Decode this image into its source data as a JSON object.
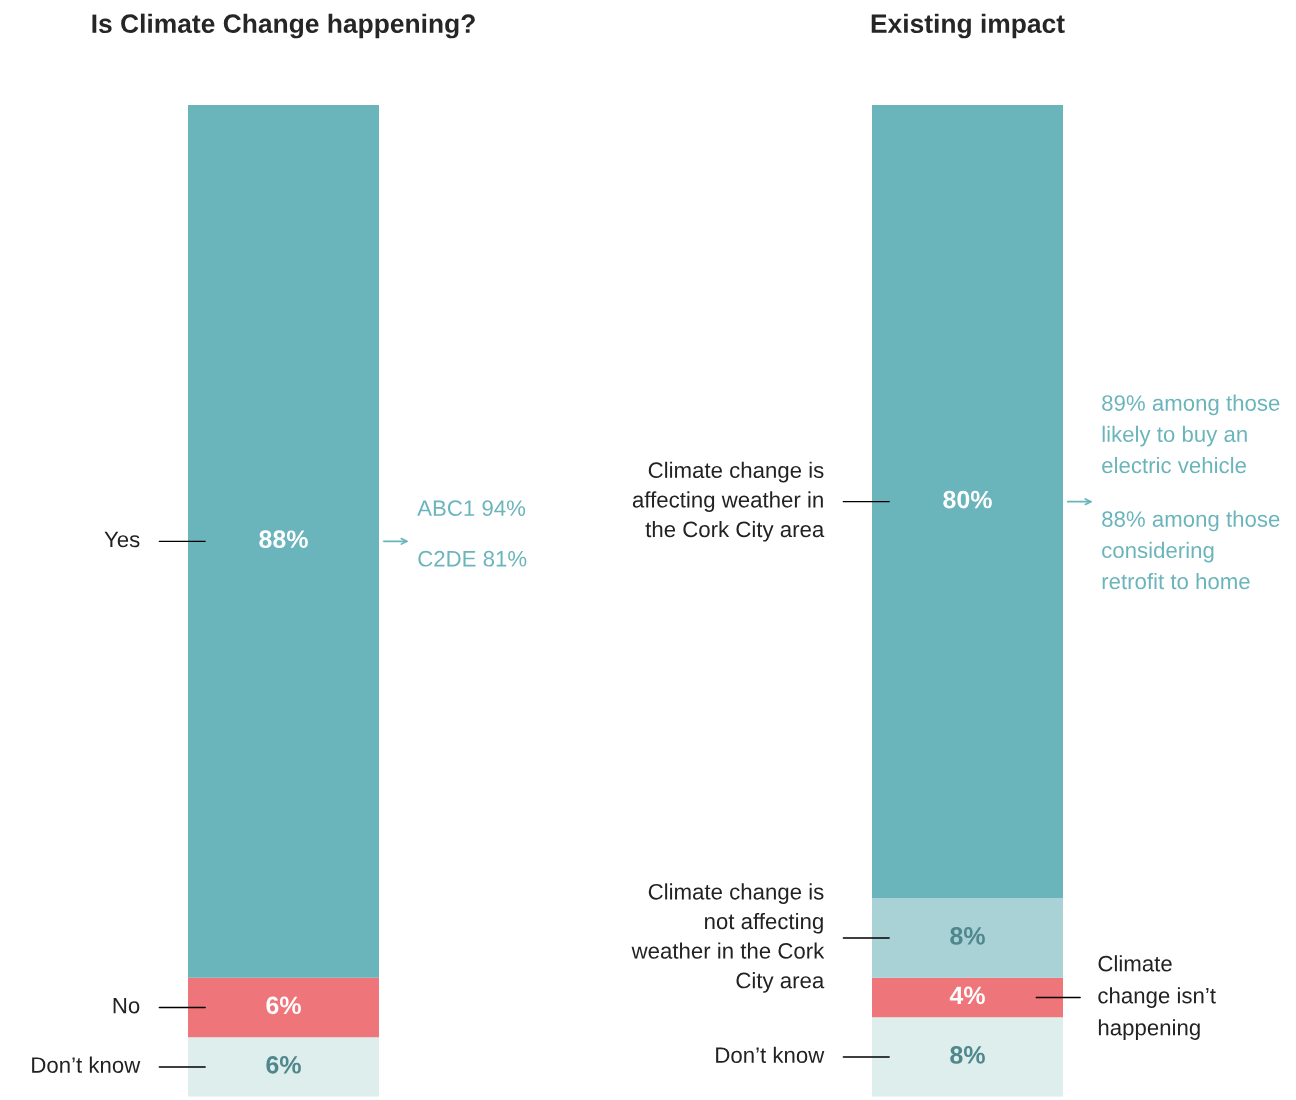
{
  "chart_data": [
    {
      "type": "bar",
      "title": "Is Climate Change happening?",
      "stacked": true,
      "categories": [
        null
      ],
      "tick_labels": false,
      "series": [
        {
          "name": "Don’t know",
          "color": "#ddeeed",
          "values": [
            6
          ],
          "value_labels": [
            "6%"
          ]
        },
        {
          "name": "No",
          "color": "#ee767a",
          "values": [
            6
          ],
          "value_labels": [
            "6%"
          ]
        },
        {
          "name": "Yes",
          "color": "#6ab4bb",
          "values": [
            88
          ],
          "value_labels": [
            "88%"
          ]
        }
      ],
      "annotations": [
        "ABC1 94%",
        "C2DE 81%"
      ]
    },
    {
      "type": "bar",
      "title": "Existing impact",
      "stacked": true,
      "categories": [
        null
      ],
      "tick_labels": false,
      "series": [
        {
          "name": "Don’t know",
          "color": "#ddeeed",
          "values": [
            8
          ],
          "value_labels": [
            "8%"
          ]
        },
        {
          "name": "Climate change isn’t happening",
          "color": "#ee767a",
          "values": [
            4
          ],
          "value_labels": [
            "4%"
          ]
        },
        {
          "name": "Climate change is not affecting weather in the Cork City area",
          "color": "#a8d2d5",
          "values": [
            8
          ],
          "value_labels": [
            "8%"
          ]
        },
        {
          "name": "Climate change is affecting weather in the Cork City area",
          "color": "#6ab4bb",
          "values": [
            80
          ],
          "value_labels": [
            "80%"
          ]
        }
      ],
      "annotations": [
        "89% among those likely to buy an electric vehicle",
        "88% among those considering retrofit to home"
      ]
    }
  ]
}
